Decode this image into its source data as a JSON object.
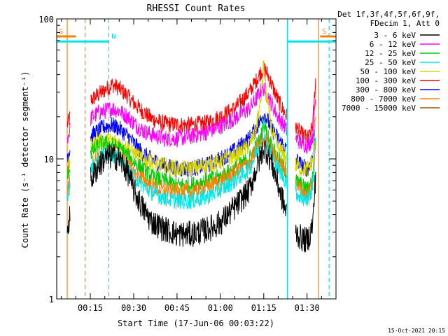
{
  "chart_data": {
    "type": "line",
    "title": "RHESSI Count Rates",
    "xlabel": "Start Time (17-Jun-06 00:03:22)",
    "ylabel": "Count Rate (s⁻¹ detector segment⁻¹)",
    "yscale": "log",
    "ylim": [
      1,
      100
    ],
    "xlim_minutes": [
      3.37,
      100.0
    ],
    "x_ticks": [
      {
        "m": 15,
        "label": "00:15"
      },
      {
        "m": 30,
        "label": "00:30"
      },
      {
        "m": 45,
        "label": "00:45"
      },
      {
        "m": 60,
        "label": "01:00"
      },
      {
        "m": 75,
        "label": "01:15"
      },
      {
        "m": 90,
        "label": "01:30"
      }
    ],
    "y_ticks": [
      {
        "v": 1,
        "label": "1"
      },
      {
        "v": 10,
        "label": "10"
      },
      {
        "v": 100,
        "label": "100"
      }
    ],
    "grid": false,
    "legend": {
      "position": "right",
      "header": [
        "Det 1f,3f,4f,5f,6f,9f,",
        "FDecim 1, Att 0"
      ],
      "entries": [
        {
          "name": "3 - 6 keV",
          "color": "#000000"
        },
        {
          "name": "6 - 12 keV",
          "color": "#ff00ff"
        },
        {
          "name": "12 - 25 keV",
          "color": "#00cc00"
        },
        {
          "name": "25 - 50 keV",
          "color": "#00e5e5"
        },
        {
          "name": "50 - 100 keV",
          "color": "#d8d800"
        },
        {
          "name": "100 - 300 keV",
          "color": "#ff0000"
        },
        {
          "name": "300 - 800 keV",
          "color": "#0000ff"
        },
        {
          "name": "800 - 7000 keV",
          "color": "#ff8000"
        },
        {
          "name": "7000 - 15000 keV",
          "color": "#a05000"
        }
      ]
    },
    "x_minutes": [
      7,
      8,
      10,
      15,
      18,
      20,
      22.5,
      25,
      28,
      30,
      33,
      36,
      40,
      45,
      50,
      55,
      60,
      65,
      70,
      72,
      74,
      75,
      76,
      78,
      80,
      83,
      86,
      88,
      90,
      91,
      92,
      93
    ],
    "data_segments": [
      [
        7,
        8
      ],
      [
        15,
        83
      ],
      [
        86,
        93
      ]
    ],
    "series": [
      {
        "name": "100 - 300 keV",
        "color": "#ff0000",
        "values": [
          17.5,
          20,
          null,
          26,
          29,
          31,
          34,
          32,
          28,
          25,
          22,
          19.5,
          18,
          17.5,
          17.5,
          18,
          20,
          23,
          30,
          35,
          42,
          44,
          42,
          33,
          26,
          20,
          17,
          15,
          14,
          14.5,
          18,
          38
        ]
      },
      {
        "name": "6 - 12 keV",
        "color": "#ff00ff",
        "values": [
          14,
          16,
          null,
          19.5,
          21.5,
          22,
          23,
          22,
          20,
          18,
          16,
          15,
          14,
          14,
          14.5,
          15.5,
          17,
          19.5,
          23,
          26,
          31,
          32,
          29,
          24,
          20,
          16,
          14,
          13,
          12.5,
          13,
          15,
          28
        ]
      },
      {
        "name": "300 - 800 keV",
        "color": "#0000ff",
        "values": [
          10.5,
          12,
          null,
          14.5,
          16,
          17,
          17.5,
          16.5,
          14.5,
          13,
          11,
          10,
          9,
          8.5,
          8.5,
          9,
          10,
          11.5,
          14,
          16,
          19,
          21,
          19.5,
          16,
          14,
          11.5,
          10,
          9,
          8.5,
          9,
          10.5,
          22
        ]
      },
      {
        "name": "50 - 100 keV",
        "color": "#d8d800",
        "values": [
          8,
          9.5,
          null,
          12,
          13.5,
          13.5,
          13.5,
          13,
          12,
          11,
          10,
          9.5,
          9,
          8.5,
          8.5,
          9,
          9.5,
          10.5,
          12.5,
          15.5,
          26,
          45,
          28,
          15,
          12,
          10,
          9,
          8.5,
          8.5,
          9,
          10,
          20
        ]
      },
      {
        "name": "12 - 25 keV",
        "color": "#00cc00",
        "values": [
          7.5,
          9,
          null,
          11,
          12.5,
          13,
          12.5,
          12,
          10.5,
          9.5,
          8.5,
          7.5,
          7,
          6.5,
          6.5,
          7,
          7.5,
          8.5,
          10,
          12,
          14,
          19,
          15.5,
          12,
          10,
          8,
          7,
          6.5,
          6,
          6.5,
          7.5,
          15
        ]
      },
      {
        "name": "800 - 7000 keV",
        "color": "#ff8000",
        "values": [
          6,
          7,
          null,
          9,
          10.5,
          11,
          11,
          10.5,
          9,
          8,
          7.2,
          6.5,
          6,
          5.8,
          5.8,
          6.2,
          7,
          8,
          9.5,
          11,
          13,
          14,
          13,
          11,
          9.5,
          8,
          6.8,
          6,
          5.5,
          6,
          7,
          14
        ]
      },
      {
        "name": "25 - 50 keV",
        "color": "#00e5e5",
        "values": [
          5.5,
          6.5,
          null,
          8.5,
          10,
          11,
          11,
          10,
          8.5,
          7.5,
          6.5,
          5.8,
          5.3,
          5,
          5,
          5.3,
          6,
          7,
          8.5,
          10.5,
          13,
          17,
          12.5,
          10,
          8.5,
          6.8,
          5.8,
          5.3,
          5,
          5.5,
          6.5,
          13
        ]
      },
      {
        "name": "3 - 6 keV",
        "color": "#000000",
        "values": [
          3.2,
          4,
          null,
          7,
          9,
          10,
          10.5,
          10,
          8,
          6,
          4.5,
          3.6,
          3.2,
          2.9,
          2.9,
          3.1,
          3.5,
          4.5,
          6,
          8,
          10.5,
          12,
          11.5,
          9,
          6.5,
          4,
          3,
          2.7,
          2.6,
          2.9,
          3.5,
          8
        ]
      }
    ],
    "markers": [
      {
        "label": "S",
        "color": "#ff8000",
        "style": "solid-bar",
        "m_start": 3.4,
        "m_end": 10.0,
        "value": 75
      },
      {
        "label": "S",
        "color": "#ff8000",
        "style": "solid-bar",
        "m_start": 94.5,
        "m_end": 100.0,
        "value": 75
      },
      {
        "label": "N",
        "color": "#00e5e5",
        "style": "solid-bar",
        "m_start": 3.4,
        "m_end": 21.4,
        "value": 69
      },
      {
        "label": "",
        "color": "#00e5e5",
        "style": "solid-bar",
        "m_start": 83.2,
        "m_end": 100.0,
        "value": 69
      }
    ],
    "vlines": [
      {
        "m": 7.0,
        "color": "#ff8000",
        "dashed": false
      },
      {
        "m": 13.2,
        "color": "#ff8000",
        "dashed": true
      },
      {
        "m": 21.4,
        "color": "#00e5e5",
        "dashed": true
      },
      {
        "m": 83.2,
        "color": "#00e5e5",
        "dashed": false
      },
      {
        "m": 94.0,
        "color": "#ff8000",
        "dashed": false
      },
      {
        "m": 97.6,
        "color": "#00e5e5",
        "dashed": true
      },
      {
        "m": 3.4,
        "color": "#00e5e5",
        "dashed": false
      }
    ]
  },
  "timestamp": "15-Oct-2021 20:15"
}
